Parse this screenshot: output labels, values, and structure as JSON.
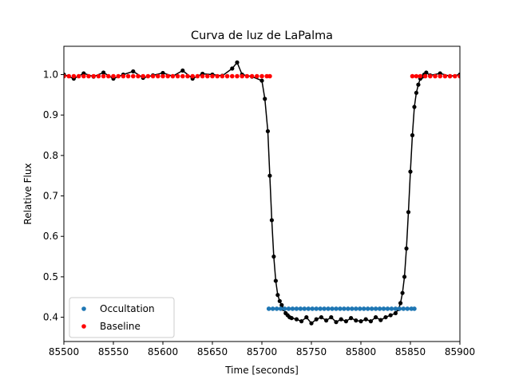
{
  "chart_data": {
    "type": "scatter",
    "title": "Curva de luz de LaPalma",
    "xlabel": "Time [seconds]",
    "ylabel": "Relative Flux",
    "xlim": [
      85500,
      85900
    ],
    "ylim": [
      0.34,
      1.07
    ],
    "xticks": [
      85500,
      85550,
      85600,
      85650,
      85700,
      85750,
      85800,
      85850,
      85900
    ],
    "yticks": [
      0.4,
      0.5,
      0.6,
      0.7,
      0.8,
      0.9,
      1.0
    ],
    "xtick_labels": [
      "85500",
      "85550",
      "85600",
      "85650",
      "85700",
      "85750",
      "85800",
      "85850",
      "85900"
    ],
    "ytick_labels": [
      "0.4",
      "0.5",
      "0.6",
      "0.7",
      "0.8",
      "0.9",
      "1.0"
    ],
    "grid": false,
    "legend_position": "lower-left",
    "series": [
      {
        "name": "",
        "kind": "line-with-markers",
        "color": "#000000",
        "x": [
          85500,
          85510,
          85520,
          85530,
          85540,
          85550,
          85560,
          85570,
          85580,
          85590,
          85600,
          85610,
          85620,
          85630,
          85640,
          85650,
          85660,
          85670,
          85675,
          85680,
          85690,
          85700,
          85703,
          85706,
          85708,
          85710,
          85712,
          85714,
          85716,
          85718,
          85720,
          85722,
          85724,
          85726,
          85728,
          85730,
          85735,
          85740,
          85745,
          85750,
          85755,
          85760,
          85765,
          85770,
          85775,
          85780,
          85785,
          85790,
          85795,
          85800,
          85805,
          85810,
          85815,
          85820,
          85825,
          85830,
          85835,
          85838,
          85840,
          85842,
          85844,
          85846,
          85848,
          85850,
          85852,
          85854,
          85856,
          85858,
          85860,
          85862,
          85864,
          85866,
          85870,
          85880,
          85890,
          85900
        ],
        "y": [
          1.0,
          0.99,
          1.003,
          0.995,
          1.005,
          0.99,
          1.0,
          1.008,
          0.992,
          0.998,
          1.004,
          0.996,
          1.01,
          0.99,
          1.002,
          1.0,
          0.997,
          1.015,
          1.03,
          1.0,
          0.995,
          0.985,
          0.94,
          0.86,
          0.75,
          0.64,
          0.55,
          0.49,
          0.455,
          0.44,
          0.43,
          0.42,
          0.41,
          0.405,
          0.4,
          0.398,
          0.395,
          0.39,
          0.4,
          0.385,
          0.395,
          0.4,
          0.392,
          0.4,
          0.388,
          0.395,
          0.39,
          0.398,
          0.392,
          0.39,
          0.395,
          0.39,
          0.4,
          0.393,
          0.4,
          0.405,
          0.41,
          0.42,
          0.435,
          0.46,
          0.5,
          0.57,
          0.66,
          0.76,
          0.85,
          0.92,
          0.955,
          0.975,
          0.99,
          0.995,
          1.0,
          1.005,
          0.998,
          1.003,
          0.996,
          1.0
        ]
      },
      {
        "name": "Occultation",
        "kind": "markers",
        "color": "#1f77b4",
        "x": [
          85707,
          85711,
          85715,
          85719,
          85723,
          85727,
          85731,
          85735,
          85739,
          85743,
          85747,
          85751,
          85755,
          85759,
          85763,
          85767,
          85771,
          85775,
          85779,
          85783,
          85787,
          85791,
          85795,
          85799,
          85803,
          85807,
          85811,
          85815,
          85819,
          85823,
          85827,
          85831,
          85835,
          85839,
          85843,
          85847,
          85851,
          85854
        ],
        "y": [
          0.421,
          0.421,
          0.421,
          0.421,
          0.421,
          0.421,
          0.421,
          0.421,
          0.421,
          0.421,
          0.421,
          0.421,
          0.421,
          0.421,
          0.421,
          0.421,
          0.421,
          0.421,
          0.421,
          0.421,
          0.421,
          0.421,
          0.421,
          0.421,
          0.421,
          0.421,
          0.421,
          0.421,
          0.421,
          0.421,
          0.421,
          0.421,
          0.421,
          0.421,
          0.421,
          0.421,
          0.421,
          0.421
        ]
      },
      {
        "name": "Baseline",
        "kind": "markers",
        "color": "#ff0000",
        "x": [
          85500,
          85505,
          85510,
          85515,
          85520,
          85525,
          85530,
          85535,
          85540,
          85545,
          85550,
          85555,
          85560,
          85565,
          85570,
          85575,
          85580,
          85585,
          85590,
          85595,
          85600,
          85605,
          85610,
          85615,
          85620,
          85625,
          85630,
          85635,
          85640,
          85645,
          85650,
          85655,
          85660,
          85665,
          85670,
          85675,
          85680,
          85685,
          85690,
          85695,
          85700,
          85705,
          85708,
          85852,
          85856,
          85860,
          85865,
          85870,
          85875,
          85880,
          85885,
          85890,
          85895,
          85900
        ],
        "y": [
          0.996,
          0.996,
          0.996,
          0.996,
          0.996,
          0.996,
          0.996,
          0.996,
          0.996,
          0.996,
          0.996,
          0.996,
          0.996,
          0.996,
          0.996,
          0.996,
          0.996,
          0.996,
          0.996,
          0.996,
          0.996,
          0.996,
          0.996,
          0.996,
          0.996,
          0.996,
          0.996,
          0.996,
          0.996,
          0.996,
          0.996,
          0.996,
          0.996,
          0.996,
          0.996,
          0.996,
          0.996,
          0.996,
          0.996,
          0.996,
          0.996,
          0.996,
          0.996,
          0.996,
          0.996,
          0.996,
          0.996,
          0.996,
          0.996,
          0.996,
          0.996,
          0.996,
          0.996,
          0.996
        ]
      }
    ]
  }
}
